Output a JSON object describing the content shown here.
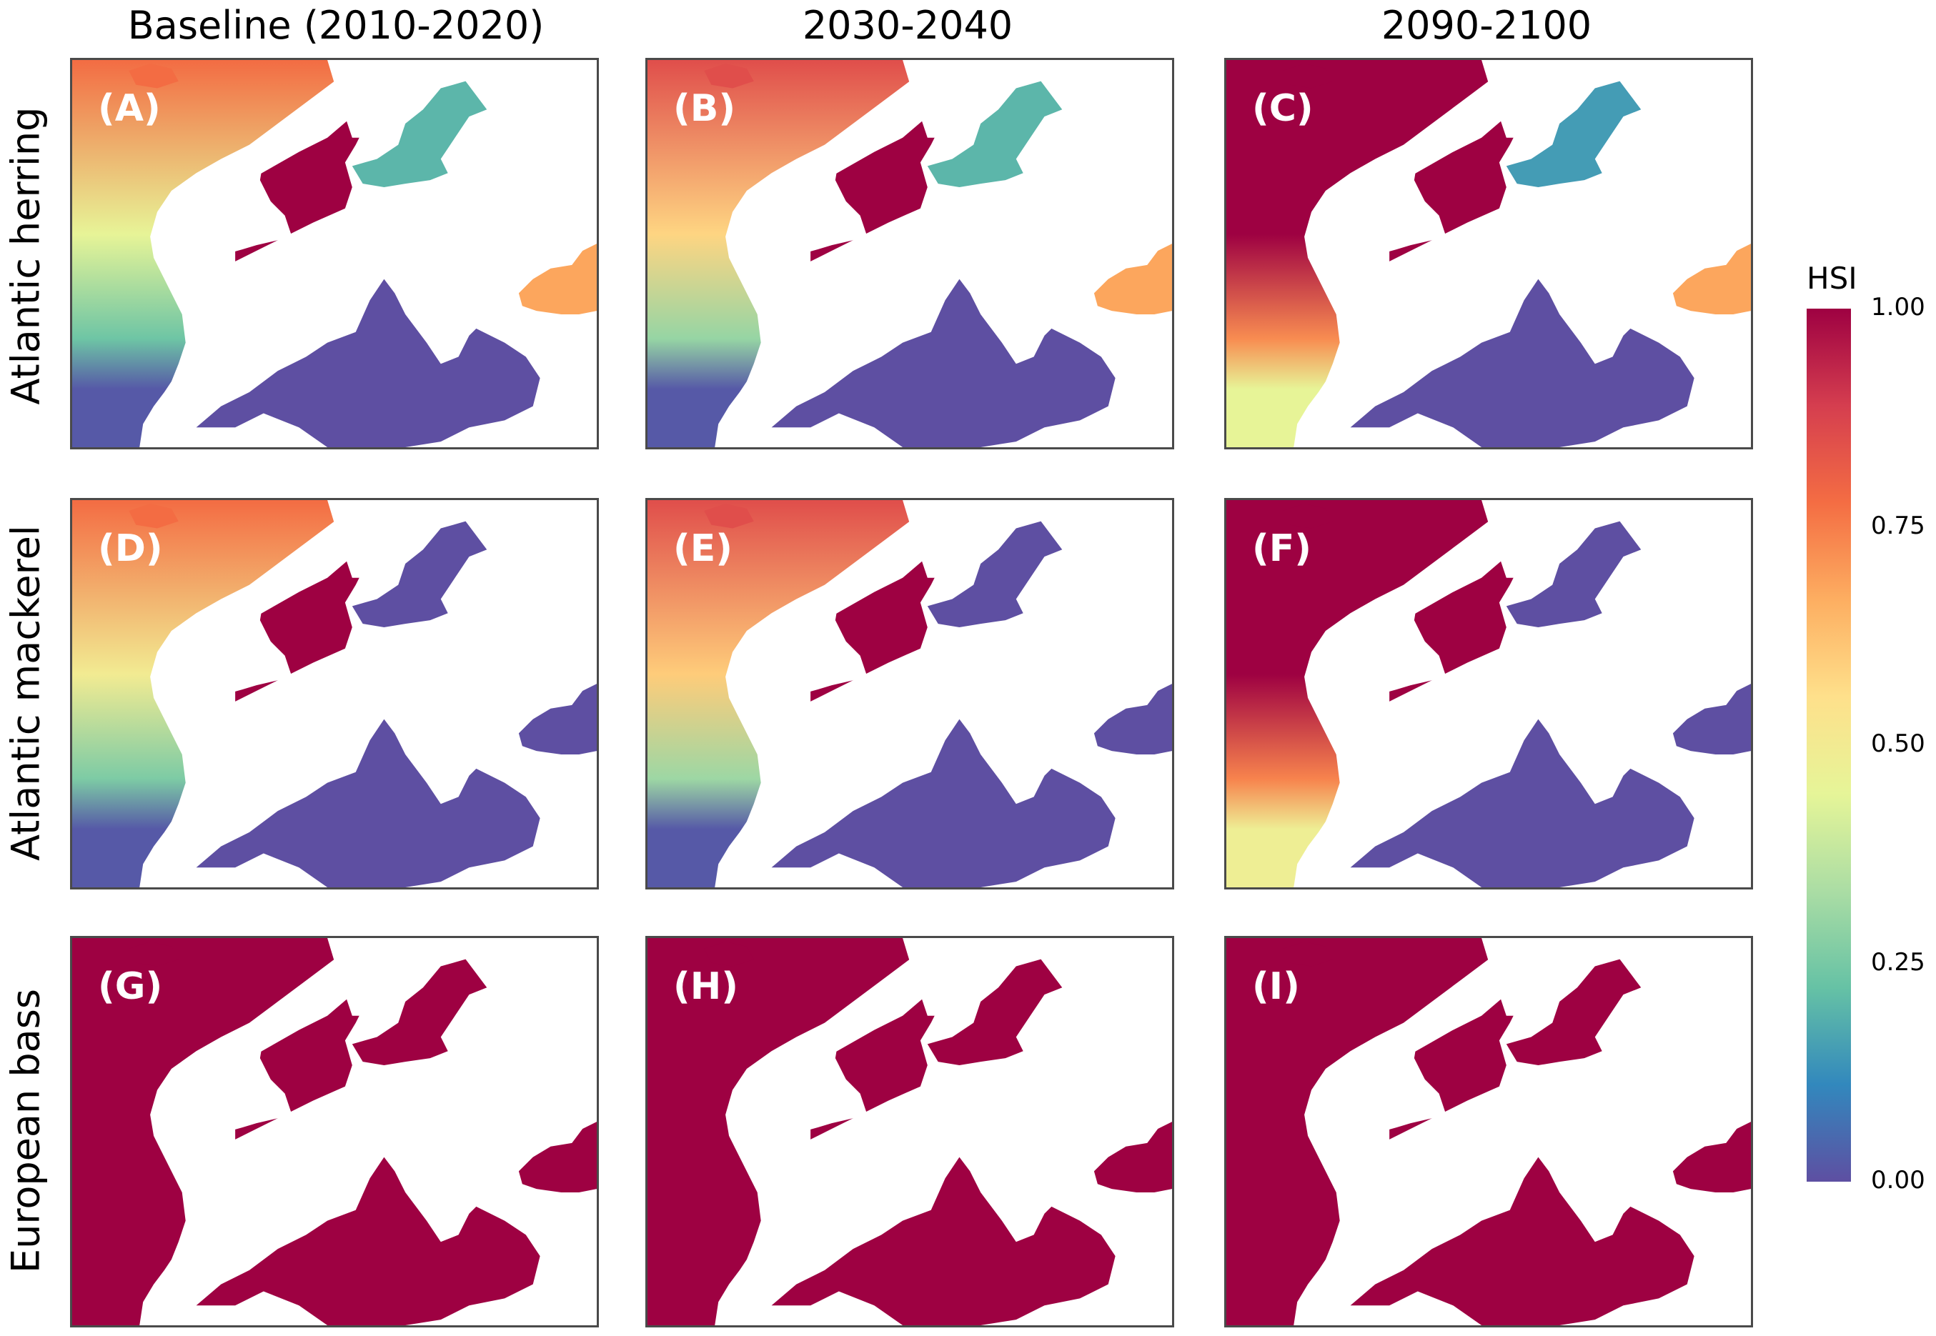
{
  "columns": [
    {
      "title": "Baseline (2010-2020)"
    },
    {
      "title": "2030-2040"
    },
    {
      "title": "2090-2100"
    }
  ],
  "rows": [
    {
      "title": "Atlantic herring"
    },
    {
      "title": "Atlantic mackerel"
    },
    {
      "title": "European bass"
    }
  ],
  "panels": [
    {
      "label": "(A)",
      "atlantic_north": 0.78,
      "atlantic_mid": 0.45,
      "atlantic_south": 0.02,
      "north_sea": 1.0,
      "baltic": 0.2,
      "mediterranean": 0.0,
      "black_sea": 0.68
    },
    {
      "label": "(B)",
      "atlantic_north": 0.85,
      "atlantic_mid": 0.58,
      "atlantic_south": 0.02,
      "north_sea": 1.0,
      "baltic": 0.2,
      "mediterranean": 0.0,
      "black_sea": 0.68
    },
    {
      "label": "(C)",
      "atlantic_north": 1.0,
      "atlantic_mid": 1.0,
      "atlantic_south": 0.45,
      "north_sea": 1.0,
      "baltic": 0.15,
      "mediterranean": 0.0,
      "black_sea": 0.68
    },
    {
      "label": "(D)",
      "atlantic_north": 0.78,
      "atlantic_mid": 0.5,
      "atlantic_south": 0.02,
      "north_sea": 1.0,
      "baltic": 0.0,
      "mediterranean": 0.0,
      "black_sea": 0.0
    },
    {
      "label": "(E)",
      "atlantic_north": 0.85,
      "atlantic_mid": 0.6,
      "atlantic_south": 0.02,
      "north_sea": 1.0,
      "baltic": 0.0,
      "mediterranean": 0.0,
      "black_sea": 0.0
    },
    {
      "label": "(F)",
      "atlantic_north": 1.0,
      "atlantic_mid": 1.0,
      "atlantic_south": 0.48,
      "north_sea": 1.0,
      "baltic": 0.0,
      "mediterranean": 0.0,
      "black_sea": 0.0
    },
    {
      "label": "(G)",
      "atlantic_north": 1.0,
      "atlantic_mid": 1.0,
      "atlantic_south": 1.0,
      "north_sea": 1.0,
      "baltic": 1.0,
      "mediterranean": 1.0,
      "black_sea": 1.0
    },
    {
      "label": "(H)",
      "atlantic_north": 1.0,
      "atlantic_mid": 1.0,
      "atlantic_south": 1.0,
      "north_sea": 1.0,
      "baltic": 1.0,
      "mediterranean": 1.0,
      "black_sea": 1.0
    },
    {
      "label": "(I)",
      "atlantic_north": 1.0,
      "atlantic_mid": 1.0,
      "atlantic_south": 1.0,
      "north_sea": 1.0,
      "baltic": 1.0,
      "mediterranean": 1.0,
      "black_sea": 1.0
    }
  ],
  "legend": {
    "title": "HSI",
    "ticks": [
      "1.00",
      "0.75",
      "0.50",
      "0.25",
      "0.00"
    ],
    "tick_values": [
      1.0,
      0.75,
      0.5,
      0.25,
      0.0
    ],
    "colors": [
      "#5e4fa2",
      "#3288bd",
      "#66c2a5",
      "#abdda4",
      "#e6f598",
      "#fee08b",
      "#fdae61",
      "#f46d43",
      "#d53e4f",
      "#9e0142"
    ]
  }
}
